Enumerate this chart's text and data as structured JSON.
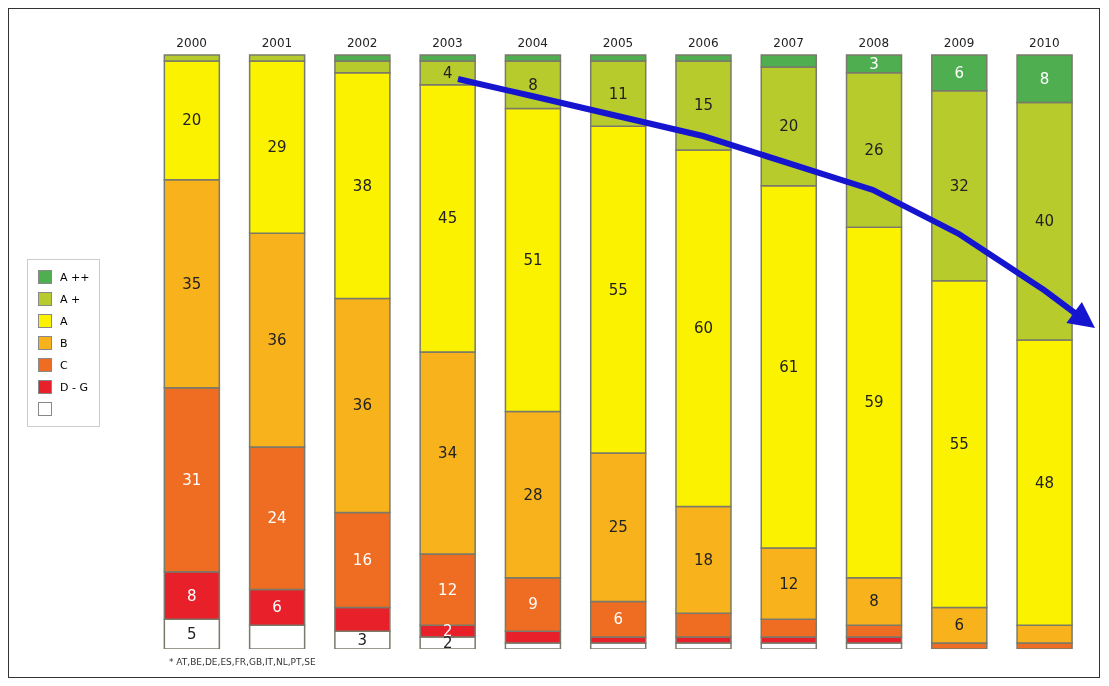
{
  "chart_data": {
    "type": "bar",
    "stacked": true,
    "data_labels": false,
    "legend": "left",
    "categories": [
      "2000",
      "2001",
      "2002",
      "2003",
      "2004",
      "2005",
      "2006",
      "2007",
      "2008",
      "2009",
      "2010"
    ],
    "series": [
      {
        "color": "#ffffff",
        "values": [
          5,
          4,
          3,
          2,
          1,
          1,
          1,
          1,
          1,
          0,
          0
        ],
        "value_labels": [
          "5",
          null,
          "3",
          "2",
          null,
          null,
          null,
          null,
          null,
          null,
          null
        ]
      },
      {
        "name": "D - G",
        "color": "#e8202a",
        "values": [
          8,
          6,
          4,
          2,
          2,
          1,
          1,
          1,
          1,
          0,
          0
        ],
        "value_labels": [
          "8",
          "6",
          null,
          "2",
          null,
          null,
          null,
          null,
          null,
          null,
          null
        ]
      },
      {
        "name": "C",
        "color": "#ef6d22",
        "values": [
          31,
          24,
          16,
          12,
          9,
          6,
          4,
          3,
          2,
          1,
          1
        ],
        "value_labels": [
          "31",
          "24",
          "16",
          "12",
          "9",
          "6",
          null,
          null,
          null,
          null,
          null
        ]
      },
      {
        "name": "B",
        "color": "#f8b31c",
        "values": [
          35,
          36,
          36,
          34,
          28,
          25,
          18,
          12,
          8,
          6,
          3
        ],
        "value_labels": [
          "35",
          "36",
          "36",
          "34",
          "28",
          "25",
          "18",
          "12",
          "8",
          "6",
          null
        ]
      },
      {
        "name": "A",
        "color": "#fbf200",
        "values": [
          20,
          29,
          38,
          45,
          51,
          55,
          60,
          61,
          59,
          55,
          48
        ],
        "value_labels": [
          "20",
          "29",
          "38",
          "45",
          "51",
          "55",
          "60",
          "61",
          "59",
          "55",
          "48"
        ]
      },
      {
        "name": "A +",
        "color": "#b7cc2c",
        "values": [
          1,
          1,
          2,
          4,
          8,
          11,
          15,
          20,
          26,
          32,
          40
        ],
        "value_labels": [
          null,
          null,
          null,
          "4",
          "8",
          "11",
          "15",
          "20",
          "26",
          "32",
          "40"
        ]
      },
      {
        "name": "A ++",
        "color": "#4fae4f",
        "values": [
          0,
          0,
          1,
          1,
          1,
          1,
          1,
          2,
          3,
          6,
          8
        ],
        "value_labels": [
          null,
          null,
          null,
          null,
          null,
          null,
          null,
          null,
          "3",
          "6",
          "8"
        ]
      }
    ],
    "annotations": [
      "* AT,BE,DE,ES,FR,GB,IT,NL,PT,SE"
    ]
  }
}
